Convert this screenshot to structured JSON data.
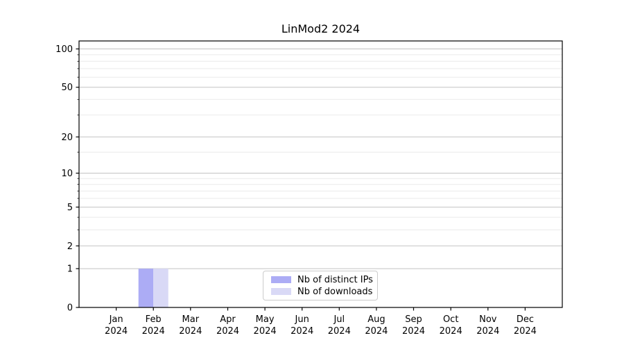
{
  "window": {
    "background": "#ffffff"
  },
  "chart_data": {
    "type": "bar",
    "title": "LinMod2 2024",
    "x_categories": [
      "Jan",
      "Feb",
      "Mar",
      "Apr",
      "May",
      "Jun",
      "Jul",
      "Aug",
      "Sep",
      "Oct",
      "Nov",
      "Dec"
    ],
    "x_year": "2024",
    "series": [
      {
        "name": "Nb of distinct IPs",
        "color": "#acacf5",
        "values": [
          0,
          1,
          0,
          0,
          0,
          0,
          0,
          0,
          0,
          0,
          0,
          0
        ]
      },
      {
        "name": "Nb of downloads",
        "color": "#d9d9f6",
        "values": [
          0,
          1,
          0,
          0,
          0,
          0,
          0,
          0,
          0,
          0,
          0,
          0
        ]
      }
    ],
    "y_axis": {
      "scale": "log(1+x)",
      "major_ticks": [
        0,
        1,
        2,
        5,
        10,
        20,
        50,
        100
      ],
      "minor_ticks": [
        3,
        4,
        6,
        7,
        8,
        9,
        15,
        30,
        40,
        60,
        70,
        80,
        90
      ],
      "ylim": [
        0,
        115
      ]
    },
    "grid": "on",
    "legend_position": "lower center",
    "colors": {
      "major_grid": "#c3c3c3",
      "minor_grid": "#eaeaea",
      "axis": "#000000"
    }
  }
}
